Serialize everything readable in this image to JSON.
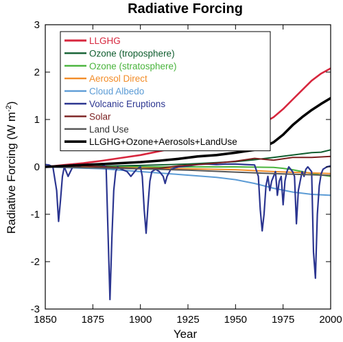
{
  "chart_data": {
    "type": "line",
    "title": "Radiative Forcing",
    "xlabel": "Year",
    "ylabel": "Radiative Forcing (W m",
    "ylabel_superscript": "-2",
    "ylabel_close": ")",
    "xlim": [
      1850,
      2000
    ],
    "ylim": [
      -3,
      3
    ],
    "xticks": [
      1850,
      1875,
      1900,
      1925,
      1950,
      1975,
      2000
    ],
    "yticks": [
      -3,
      -2,
      -1,
      0,
      1,
      2,
      3
    ],
    "grid": false,
    "legend_position": "top-left",
    "series": [
      {
        "name": "LLGHG",
        "color": "#d7263d",
        "width": 2.6,
        "x": [
          1850,
          1860,
          1870,
          1880,
          1890,
          1900,
          1910,
          1920,
          1930,
          1940,
          1950,
          1960,
          1970,
          1975,
          1980,
          1985,
          1990,
          1995,
          2000
        ],
        "y": [
          0.0,
          0.04,
          0.08,
          0.13,
          0.19,
          0.25,
          0.33,
          0.42,
          0.51,
          0.59,
          0.68,
          0.82,
          1.05,
          1.22,
          1.42,
          1.62,
          1.82,
          1.97,
          2.08
        ]
      },
      {
        "name": "Ozone (troposphere)",
        "color": "#0f5d2e",
        "width": 2,
        "x": [
          1850,
          1875,
          1900,
          1925,
          1950,
          1960,
          1970,
          1980,
          1990,
          1995,
          2000
        ],
        "y": [
          0.0,
          0.01,
          0.03,
          0.06,
          0.11,
          0.15,
          0.2,
          0.25,
          0.3,
          0.31,
          0.36
        ]
      },
      {
        "name": "Ozone (stratosphere)",
        "color": "#49b43c",
        "width": 2,
        "x": [
          1850,
          1900,
          1950,
          1970,
          1975,
          1980,
          1985,
          1990,
          1995,
          2000
        ],
        "y": [
          0.0,
          0.0,
          0.0,
          -0.01,
          -0.03,
          -0.06,
          -0.1,
          -0.14,
          -0.17,
          -0.2
        ]
      },
      {
        "name": "Aerosol Direct",
        "color": "#f28c28",
        "width": 2,
        "x": [
          1850,
          1900,
          1950,
          1970,
          2000
        ],
        "y": [
          0.0,
          -0.02,
          -0.06,
          -0.1,
          -0.14
        ]
      },
      {
        "name": "Cloud Albedo",
        "color": "#5b9bd5",
        "width": 2,
        "x": [
          1850,
          1880,
          1900,
          1920,
          1940,
          1950,
          1960,
          1970,
          1980,
          1990,
          2000
        ],
        "y": [
          0.0,
          -0.04,
          -0.1,
          -0.16,
          -0.22,
          -0.27,
          -0.35,
          -0.45,
          -0.53,
          -0.58,
          -0.6
        ]
      },
      {
        "name": "Volcanic Eruptions",
        "color": "#2b3590",
        "width": 2.2,
        "x": [
          1850,
          1852,
          1854,
          1856,
          1857,
          1858,
          1859,
          1860,
          1862,
          1865,
          1868,
          1870,
          1875,
          1880,
          1882,
          1883,
          1884,
          1885,
          1886,
          1887,
          1888,
          1890,
          1893,
          1895,
          1898,
          1900,
          1901,
          1902,
          1903,
          1904,
          1905,
          1906,
          1908,
          1910,
          1912,
          1913,
          1914,
          1916,
          1920,
          1925,
          1930,
          1935,
          1940,
          1945,
          1950,
          1955,
          1960,
          1962,
          1963,
          1964,
          1965,
          1966,
          1967,
          1968,
          1969,
          1970,
          1971,
          1972,
          1973,
          1974,
          1975,
          1976,
          1977,
          1978,
          1980,
          1981,
          1982,
          1983,
          1984,
          1985,
          1986,
          1987,
          1988,
          1990,
          1991,
          1992,
          1993,
          1994,
          1995,
          1996,
          1998,
          2000
        ],
        "y": [
          0.05,
          0.04,
          0.0,
          -0.5,
          -1.15,
          -0.7,
          -0.2,
          0.0,
          -0.2,
          0.05,
          0.0,
          0.05,
          0.06,
          0.05,
          0.0,
          -1.4,
          -2.8,
          -1.5,
          -0.5,
          -0.1,
          0.0,
          -0.05,
          -0.1,
          -0.2,
          -0.05,
          0.0,
          -0.2,
          -0.9,
          -1.4,
          -0.8,
          -0.3,
          -0.1,
          -0.05,
          -0.1,
          -0.2,
          -0.35,
          -0.2,
          -0.05,
          0.0,
          0.02,
          0.05,
          0.06,
          0.05,
          0.06,
          0.06,
          0.05,
          0.04,
          -0.2,
          -0.9,
          -1.35,
          -1.0,
          -0.4,
          -0.2,
          -0.5,
          -0.3,
          -0.2,
          -0.1,
          -0.6,
          -0.3,
          -0.2,
          -0.8,
          -0.3,
          -0.1,
          0.0,
          -0.1,
          -0.2,
          -1.2,
          -0.5,
          -0.3,
          -0.1,
          -0.2,
          -0.05,
          0.0,
          -0.1,
          -1.8,
          -2.35,
          -1.0,
          -0.4,
          -0.15,
          -0.05,
          0.0,
          0.02
        ]
      },
      {
        "name": "Solar",
        "color": "#7a1f1f",
        "width": 2,
        "x": [
          1850,
          1870,
          1890,
          1900,
          1910,
          1920,
          1930,
          1940,
          1950,
          1960,
          1970,
          1980,
          1990,
          2000
        ],
        "y": [
          0.0,
          0.02,
          -0.02,
          -0.04,
          -0.03,
          0.02,
          0.05,
          0.08,
          0.12,
          0.18,
          0.14,
          0.2,
          0.2,
          0.22
        ]
      },
      {
        "name": "Land Use",
        "color": "#555555",
        "width": 2,
        "x": [
          1850,
          1875,
          1900,
          1925,
          1950,
          1975,
          2000
        ],
        "y": [
          0.0,
          -0.02,
          -0.04,
          -0.07,
          -0.11,
          -0.15,
          -0.18
        ]
      },
      {
        "name": "LLGHG+Ozone+Aerosols+LandUse",
        "color": "#000000",
        "width": 3.6,
        "x": [
          1850,
          1860,
          1870,
          1880,
          1890,
          1900,
          1910,
          1920,
          1930,
          1940,
          1950,
          1960,
          1965,
          1970,
          1975,
          1980,
          1985,
          1990,
          1995,
          2000
        ],
        "y": [
          0.0,
          0.02,
          0.04,
          0.06,
          0.08,
          0.1,
          0.13,
          0.17,
          0.22,
          0.25,
          0.3,
          0.36,
          0.42,
          0.52,
          0.68,
          0.88,
          1.05,
          1.2,
          1.33,
          1.45
        ]
      }
    ]
  }
}
